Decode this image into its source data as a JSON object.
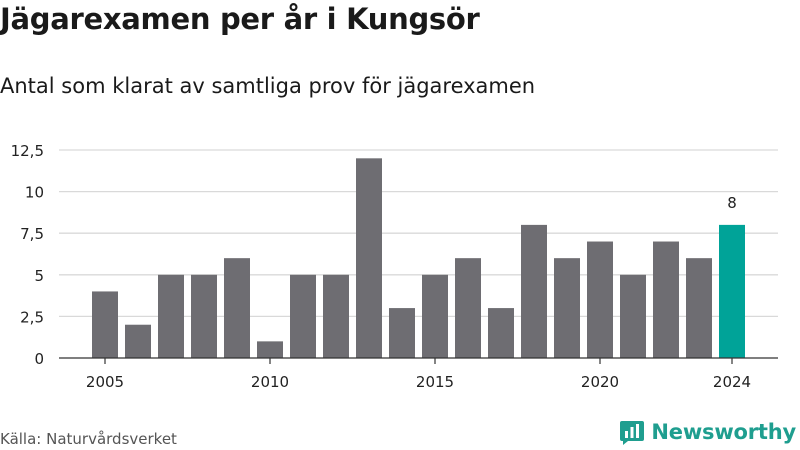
{
  "header": {
    "title": "Jägarexamen per år i Kungsör",
    "subtitle": "Antal som klarat av samtliga prov för jägarexamen"
  },
  "footer": {
    "source": "Källa: Naturvårdsverket",
    "brand": "Newsworthy"
  },
  "colors": {
    "bar": "#6e6d72",
    "highlight": "#00a398",
    "grid": "#d9d9d9",
    "brand": "#1f9e8f"
  },
  "icons": {
    "brand_logo": "bar-chart-badge-icon"
  },
  "chart_data": {
    "type": "bar",
    "x": [
      2005,
      2006,
      2007,
      2008,
      2009,
      2010,
      2011,
      2012,
      2013,
      2014,
      2015,
      2016,
      2017,
      2018,
      2019,
      2020,
      2021,
      2022,
      2023,
      2024
    ],
    "values": [
      4,
      2,
      5,
      5,
      6,
      1,
      5,
      5,
      12,
      3,
      5,
      6,
      3,
      8,
      6,
      7,
      5,
      7,
      6,
      8
    ],
    "highlight_year": 2024,
    "data_labels": [
      {
        "x": 2024,
        "text": "8"
      }
    ],
    "y_ticks": [
      0,
      2.5,
      5,
      7.5,
      10,
      12.5
    ],
    "y_tick_labels": [
      "0",
      "2,5",
      "5",
      "7,5",
      "10",
      "12,5"
    ],
    "x_ticks": [
      2005,
      2010,
      2015,
      2020,
      2024
    ],
    "x_tick_labels": [
      "2005",
      "2010",
      "2015",
      "2020",
      "2024"
    ],
    "ylim": [
      0,
      12.5
    ],
    "grid": true,
    "legend": "none"
  }
}
